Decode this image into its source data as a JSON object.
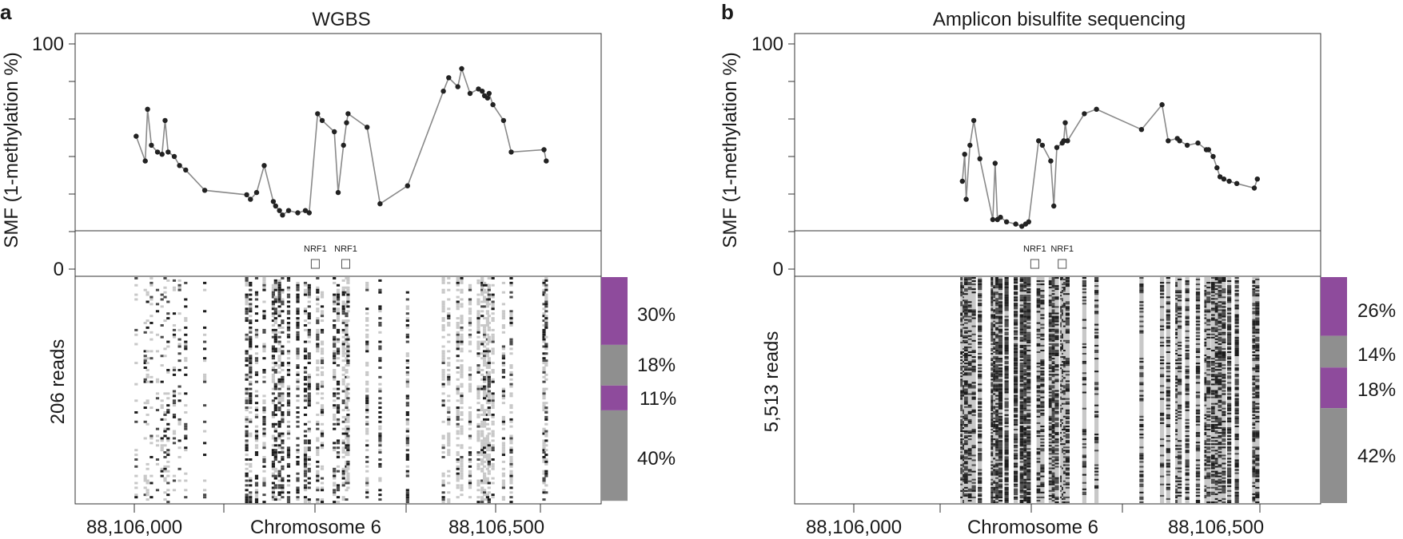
{
  "colors": {
    "line": "#8a8a8a",
    "point": "#222222",
    "frame": "#333333",
    "purple": "#8e4b9c",
    "gray": "#8f8f8f",
    "dark": "#1c1c1c",
    "light": "#c8c8c8"
  },
  "chart_data": [
    {
      "type": "line",
      "panel": "a",
      "title": "WGBS",
      "ylabel": "SMF (1-methylation %)",
      "ylim": [
        0,
        100
      ],
      "yticks": [
        100,
        0
      ],
      "xlim": [
        88105900,
        88106590
      ],
      "xtick_labels": [
        "88,106,000",
        "Chromosome 6",
        "88,106,500"
      ],
      "motif_label": "NRF1",
      "motif_labels": [
        "NRF1",
        "NRF1"
      ],
      "motif_positions": [
        88106215,
        88106255
      ],
      "x": [
        88105980,
        88105992,
        88105995,
        88106000,
        88106008,
        88106014,
        88106018,
        88106022,
        88106030,
        88106037,
        88106045,
        88106070,
        88106125,
        88106130,
        88106138,
        88106148,
        88106160,
        88106163,
        88106168,
        88106172,
        88106180,
        88106192,
        88106202,
        88106207,
        88106218,
        88106224,
        88106240,
        88106245,
        88106252,
        88106256,
        88106258,
        88106283,
        88106300,
        88106336,
        88106383,
        88106390,
        88106402,
        88106407,
        88106418,
        88106429,
        88106434,
        88106437,
        88106441,
        88106443,
        88106448,
        88106462,
        88106472,
        88106515,
        88106518
      ],
      "values": [
        59,
        48,
        71,
        55,
        52,
        51,
        66,
        52,
        50,
        46,
        44,
        35,
        33,
        31,
        34,
        46,
        30,
        28,
        26,
        24,
        26,
        25,
        26,
        25,
        69,
        66,
        61,
        34,
        55,
        65,
        69,
        63,
        29,
        37,
        79,
        85,
        81,
        89,
        78,
        80,
        79,
        77,
        76,
        78,
        73,
        66,
        52,
        53,
        48
      ],
      "heatmap": {
        "reads_label": "206 reads",
        "cluster_percents": [
          "30%",
          "18%",
          "11%",
          "40%"
        ],
        "cluster_fractions": [
          0.3,
          0.18,
          0.11,
          0.4
        ],
        "cluster_colors": [
          "purple",
          "gray",
          "purple",
          "gray"
        ]
      }
    },
    {
      "type": "line",
      "panel": "b",
      "title": "Amplicon bisulfite sequencing",
      "ylabel": "SMF (1-methylation %)",
      "ylim": [
        0,
        100
      ],
      "yticks": [
        100,
        0
      ],
      "xlim": [
        88105900,
        88106590
      ],
      "xtick_labels": [
        "88,106,000",
        "Chromosome 6",
        "88,106,500"
      ],
      "motif_label": "NRF1",
      "motif_labels": [
        "NRF1",
        "NRF1"
      ],
      "motif_positions": [
        88106215,
        88106251
      ],
      "x": [
        88106120,
        88106123,
        88106125,
        88106130,
        88106135,
        88106143,
        88106160,
        88106163,
        88106166,
        88106170,
        88106178,
        88106190,
        88106198,
        88106203,
        88106207,
        88106220,
        88106225,
        88106236,
        88106240,
        88106244,
        88106251,
        88106253,
        88106255,
        88106258,
        88106280,
        88106296,
        88106355,
        88106382,
        88106390,
        88106402,
        88106405,
        88106415,
        88106429,
        88106440,
        88106443,
        88106449,
        88106454,
        88106458,
        88106463,
        88106470,
        88106480,
        88106503,
        88106507
      ],
      "values": [
        39,
        51,
        31,
        55,
        66,
        49,
        22,
        47,
        22,
        23,
        21,
        20,
        19,
        20,
        21,
        57,
        55,
        48,
        28,
        54,
        56,
        57,
        65,
        57,
        69,
        71,
        62,
        73,
        57,
        58,
        57,
        55,
        56,
        53,
        53,
        50,
        45,
        41,
        40,
        39,
        38,
        36,
        40
      ],
      "heatmap": {
        "reads_label": "5,513 reads",
        "cluster_percents": [
          "26%",
          "14%",
          "18%",
          "42%"
        ],
        "cluster_fractions": [
          0.26,
          0.14,
          0.18,
          0.42
        ],
        "cluster_colors": [
          "purple",
          "gray",
          "purple",
          "gray"
        ]
      }
    }
  ]
}
